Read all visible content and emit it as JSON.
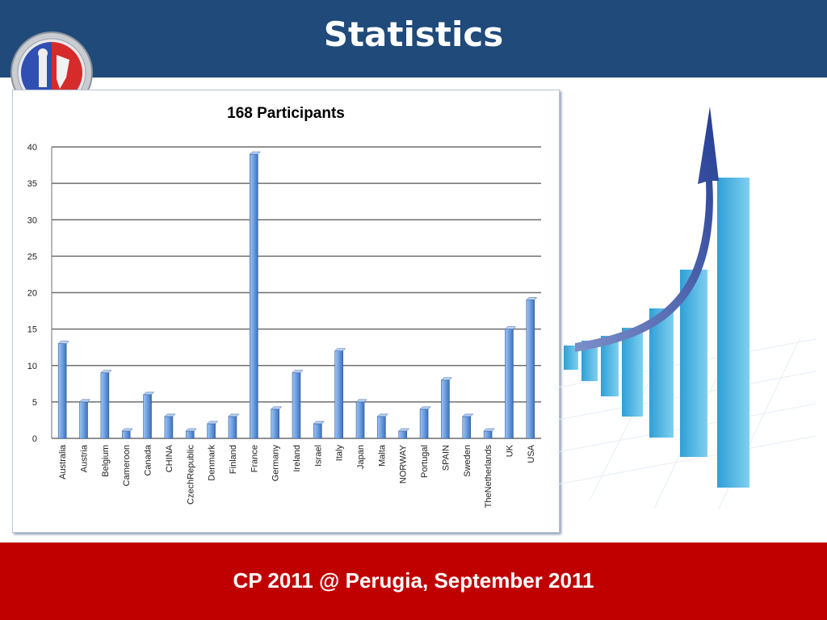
{
  "slide": {
    "title": "Statistics",
    "footer": "CP 2011 @ Perugia,  September 2011",
    "accent_header": "#1f4a7a",
    "accent_footer": "#c00000"
  },
  "chart_data": {
    "type": "bar",
    "title": "168 Participants",
    "xlabel": "",
    "ylabel": "",
    "ylim": [
      0,
      40
    ],
    "yticks": [
      0,
      5,
      10,
      15,
      20,
      25,
      30,
      35,
      40
    ],
    "grid": true,
    "categories": [
      "Australia",
      "Austria",
      "Belgium",
      "Cameroon",
      "Canada",
      "CHINA",
      "CzechRepublic",
      "Denmark",
      "Finland",
      "France",
      "Germany",
      "Ireland",
      "Israel",
      "Italy",
      "Japan",
      "Malta",
      "NORWAY",
      "Portugal",
      "SPAIN",
      "Sweden",
      "TheNetherlands",
      "UK",
      "USA"
    ],
    "values": [
      13,
      5,
      9,
      1,
      6,
      3,
      1,
      2,
      3,
      39,
      4,
      9,
      2,
      12,
      5,
      3,
      1,
      4,
      8,
      3,
      1,
      15,
      19
    ],
    "bar_color": "#4f81bd"
  }
}
